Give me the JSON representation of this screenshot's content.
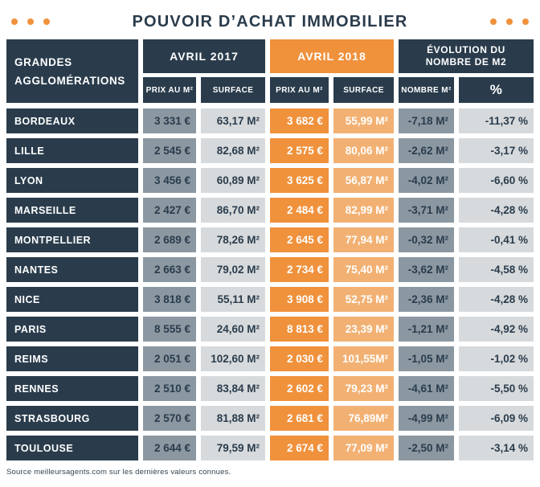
{
  "page": {
    "title": "POUVOIR D’ACHAT IMMOBILIER",
    "source_note": "Source meilleursagents.com sur les dernières valeurs connues."
  },
  "colors": {
    "navy": "#2A3C4C",
    "orange": "#F0913C",
    "light_orange": "#F2B173",
    "gray_blue": "#8B98A2",
    "light_gray": "#D7DADC"
  },
  "table": {
    "corner": {
      "line1": "GRANDES",
      "line2": "AGGLOMÉRATIONS"
    },
    "groups": [
      {
        "label": "AVRIL 2017"
      },
      {
        "label": "AVRIL 2018"
      },
      {
        "line1": "ÉVOLUTION DU",
        "line2": "NOMBRE DE M2"
      }
    ],
    "subheaders": [
      "PRIX AU M²",
      "SURFACE",
      "PRIX AU M²",
      "SURFACE",
      "NOMBRE M²",
      "%"
    ],
    "rows": [
      {
        "city": "BORDEAUX",
        "p17": "3 331 €",
        "s17": "63,17 M²",
        "p18": "3 682 €",
        "s18": "55,99 M²",
        "nm2": "-7,18 M²",
        "pct": "-11,37 %"
      },
      {
        "city": "LILLE",
        "p17": "2 545 €",
        "s17": "82,68 M²",
        "p18": "2 575 €",
        "s18": "80,06 M²",
        "nm2": "-2,62 M²",
        "pct": "-3,17 %"
      },
      {
        "city": "LYON",
        "p17": "3 456 €",
        "s17": "60,89 M²",
        "p18": "3 625 €",
        "s18": "56,87 M²",
        "nm2": "-4,02 M²",
        "pct": "-6,60 %"
      },
      {
        "city": "MARSEILLE",
        "p17": "2 427 €",
        "s17": "86,70 M²",
        "p18": "2 484 €",
        "s18": "82,99 M²",
        "nm2": "-3,71 M²",
        "pct": "-4,28 %"
      },
      {
        "city": "MONTPELLIER",
        "p17": "2 689 €",
        "s17": "78,26 M²",
        "p18": "2 645 €",
        "s18": "77,94 M²",
        "nm2": "-0,32 M²",
        "pct": "-0,41 %"
      },
      {
        "city": "NANTES",
        "p17": "2 663 €",
        "s17": "79,02 M²",
        "p18": "2 734 €",
        "s18": "75,40 M²",
        "nm2": "-3,62 M²",
        "pct": "-4,58 %"
      },
      {
        "city": "NICE",
        "p17": "3 818 €",
        "s17": "55,11 M²",
        "p18": "3 908 €",
        "s18": "52,75 M²",
        "nm2": "-2,36 M²",
        "pct": "-4,28 %"
      },
      {
        "city": "PARIS",
        "p17": "8 555 €",
        "s17": "24,60 M²",
        "p18": "8 813 €",
        "s18": "23,39 M²",
        "nm2": "-1,21 M²",
        "pct": "-4,92 %"
      },
      {
        "city": "REIMS",
        "p17": "2 051 €",
        "s17": "102,60 M²",
        "p18": "2 030 €",
        "s18": "101,55M²",
        "nm2": "-1,05 M²",
        "pct": "-1,02 %"
      },
      {
        "city": "RENNES",
        "p17": "2 510 €",
        "s17": "83,84 M²",
        "p18": "2 602 €",
        "s18": "79,23 M²",
        "nm2": "-4,61 M²",
        "pct": "-5,50 %"
      },
      {
        "city": "STRASBOURG",
        "p17": "2 570 €",
        "s17": "81,88 M²",
        "p18": "2 681 €",
        "s18": "76,89M²",
        "nm2": "-4,99 M²",
        "pct": "-6,09 %"
      },
      {
        "city": "TOULOUSE",
        "p17": "2 644 €",
        "s17": "79,59 M²",
        "p18": "2 674 €",
        "s18": "77,09 M²",
        "nm2": "-2,50 M²",
        "pct": "-3,14 %"
      }
    ]
  },
  "chart_data": {
    "type": "table",
    "title": "POUVOIR D'ACHAT IMMOBILIER",
    "columns": [
      "GRANDES AGGLOMÉRATIONS",
      "AVRIL 2017 - PRIX AU M² (€)",
      "AVRIL 2017 - SURFACE (M²)",
      "AVRIL 2018 - PRIX AU M² (€)",
      "AVRIL 2018 - SURFACE (M²)",
      "ÉVOLUTION DU NOMBRE DE M2 - NOMBRE M²",
      "ÉVOLUTION DU NOMBRE DE M2 - %"
    ],
    "rows": [
      [
        "BORDEAUX",
        3331,
        63.17,
        3682,
        55.99,
        -7.18,
        -11.37
      ],
      [
        "LILLE",
        2545,
        82.68,
        2575,
        80.06,
        -2.62,
        -3.17
      ],
      [
        "LYON",
        3456,
        60.89,
        3625,
        56.87,
        -4.02,
        -6.6
      ],
      [
        "MARSEILLE",
        2427,
        86.7,
        2484,
        82.99,
        -3.71,
        -4.28
      ],
      [
        "MONTPELLIER",
        2689,
        78.26,
        2645,
        77.94,
        -0.32,
        -0.41
      ],
      [
        "NANTES",
        2663,
        79.02,
        2734,
        75.4,
        -3.62,
        -4.58
      ],
      [
        "NICE",
        3818,
        55.11,
        3908,
        52.75,
        -2.36,
        -4.28
      ],
      [
        "PARIS",
        8555,
        24.6,
        8813,
        23.39,
        -1.21,
        -4.92
      ],
      [
        "REIMS",
        2051,
        102.6,
        2030,
        101.55,
        -1.05,
        -1.02
      ],
      [
        "RENNES",
        2510,
        83.84,
        2602,
        79.23,
        -4.61,
        -5.5
      ],
      [
        "STRASBOURG",
        2570,
        81.88,
        2681,
        76.89,
        -4.99,
        -6.09
      ],
      [
        "TOULOUSE",
        2644,
        79.59,
        2674,
        77.09,
        -2.5,
        -3.14
      ]
    ],
    "source": "meilleursagents.com"
  }
}
